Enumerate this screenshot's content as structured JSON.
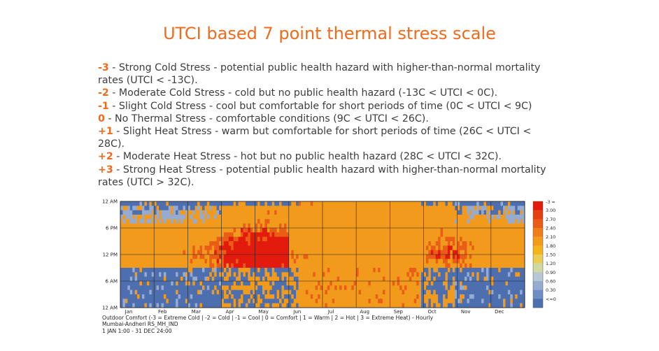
{
  "title": "UTCI based 7 point thermal stress scale",
  "scale": [
    {
      "code": " -3",
      "text": " - Strong Cold Stress - potential public health hazard with higher-than-normal mortality rates (UTCI < -13C)."
    },
    {
      "code": "-2",
      "text": " - Moderate Cold Stress - cold but no public health hazard (-13C < UTCI < 0C)."
    },
    {
      "code": "-1",
      "text": " - Slight Cold Stress - cool but comfortable for short periods of time (0C < UTCI < 9C)"
    },
    {
      "code": "0",
      "text": "  - No Thermal Stress  - comfortable conditions (9C < UTCI < 26C)."
    },
    {
      "code": "+1",
      "text": " - Slight Heat Stress - warm but comfortable for short periods of time (26C < UTCI < 28C)."
    },
    {
      "code": "+2",
      "text": " - Moderate Heat Stress - hot but no public health hazard (28C < UTCI < 32C)."
    },
    {
      "code": "+3",
      "text": " - Strong Heat Stress - potential public health hazard with higher-than-normal mortality rates (UTCI > 32C)."
    }
  ],
  "chart_data": {
    "type": "heatmap",
    "x_axis": {
      "ticks": [
        "Jan",
        "Feb",
        "Mar",
        "Apr",
        "May",
        "Jun",
        "Jul",
        "Aug",
        "Sep",
        "Oct",
        "Nov",
        "Dec"
      ]
    },
    "y_axis": {
      "ticks": [
        "12 AM",
        "6 PM",
        "12 PM",
        "6 AM",
        "12 AM"
      ]
    },
    "legend": {
      "placement": "right",
      "labels": [
        "-3 =",
        "3.00",
        "2.70",
        "2.40",
        "2.10",
        "1.80",
        "1.50",
        "1.20",
        "0.90",
        "0.60",
        "0.30",
        "<=0"
      ],
      "colors": [
        "#e21b0c",
        "#e53f12",
        "#ea5d17",
        "#f07d1a",
        "#f29a1c",
        "#f4b41c",
        "#e9cd55",
        "#cfd9a0",
        "#b7c7d6",
        "#95abd1",
        "#6f8ec6",
        "#4d6fb0"
      ]
    },
    "grid": true,
    "cell_colors": {
      "cold": "#4d6fb0",
      "cool": "#95abd1",
      "comfort": "#f29a1c",
      "warm": "#ea5d17",
      "hot": "#e21b0c"
    },
    "caption": [
      "Outdoor Comfort (-3 = Extreme Cold | -2 = Cold | -1 = Cool | 0 = Comfort | 1 = Warm | 2 = Hot | 3 = Extreme Heat) - Hourly",
      "Mumbai-Andheri RS_MH_IND",
      "1 JAN 1:00 - 31 DEC 24:00"
    ]
  }
}
